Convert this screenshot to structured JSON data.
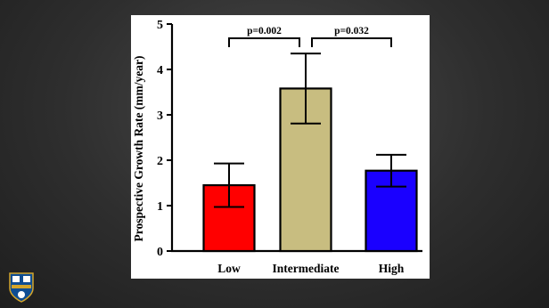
{
  "chart_data": {
    "type": "bar",
    "ylabel": "Prospective Growth Rate (mm/year)",
    "xlabel": "",
    "ylim": [
      0,
      5
    ],
    "yticks": [
      "0",
      "1",
      "2",
      "3",
      "4",
      "5"
    ],
    "categories": [
      "Low",
      "Intermediate",
      "High"
    ],
    "values": [
      1.45,
      3.58,
      1.77
    ],
    "errors": [
      0.48,
      0.77,
      0.35
    ],
    "bar_colors": [
      "#ff0000",
      "#c8bd80",
      "#1a00ff"
    ],
    "comparisons": [
      {
        "from": 0,
        "to": 1,
        "label": "p=0.002"
      },
      {
        "from": 1,
        "to": 2,
        "label": "p=0.032"
      }
    ],
    "grid": false,
    "legend": "none"
  },
  "logo": {
    "name": "university-shield-logo",
    "colors": [
      "#0f4d92",
      "#d4a52a"
    ]
  }
}
